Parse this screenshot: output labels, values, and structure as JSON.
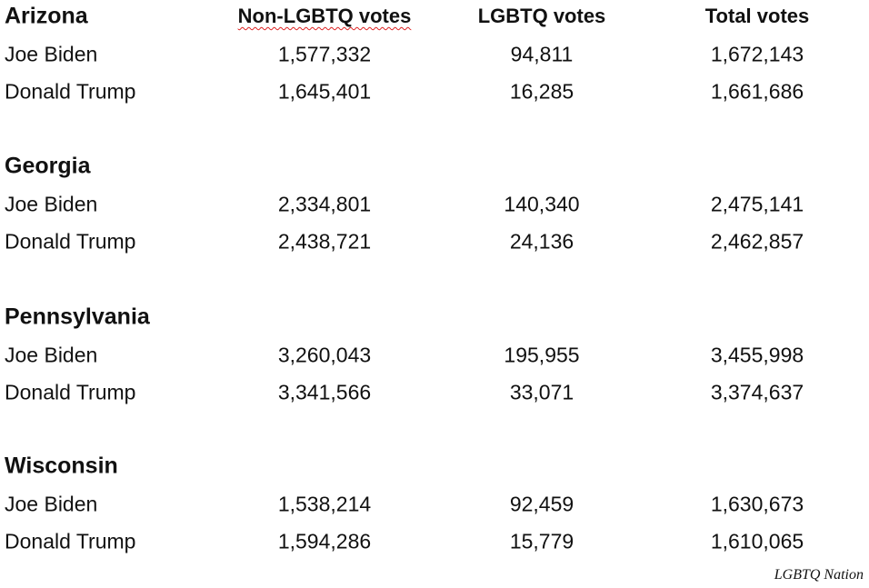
{
  "columns": [
    "Non-LGBTQ votes",
    "LGBTQ votes",
    "Total votes"
  ],
  "states": [
    {
      "name": "Arizona",
      "rows": [
        {
          "candidate": "Joe Biden",
          "values": [
            "1,577,332",
            "94,811",
            "1,672,143"
          ]
        },
        {
          "candidate": "Donald Trump",
          "values": [
            "1,645,401",
            "16,285",
            "1,661,686"
          ]
        }
      ]
    },
    {
      "name": "Georgia",
      "rows": [
        {
          "candidate": "Joe Biden",
          "values": [
            "2,334,801",
            "140,340",
            "2,475,141"
          ]
        },
        {
          "candidate": "Donald Trump",
          "values": [
            "2,438,721",
            "24,136",
            "2,462,857"
          ]
        }
      ]
    },
    {
      "name": "Pennsylvania",
      "rows": [
        {
          "candidate": "Joe Biden",
          "values": [
            "3,260,043",
            "195,955",
            "3,455,998"
          ]
        },
        {
          "candidate": "Donald Trump",
          "values": [
            "3,341,566",
            "33,071",
            "3,374,637"
          ]
        }
      ]
    },
    {
      "name": "Wisconsin",
      "rows": [
        {
          "candidate": "Joe Biden",
          "values": [
            "1,538,214",
            "92,459",
            "1,630,673"
          ]
        },
        {
          "candidate": "Donald Trump",
          "values": [
            "1,594,286",
            "15,779",
            "1,610,065"
          ]
        }
      ]
    }
  ],
  "source": "LGBTQ Nation"
}
